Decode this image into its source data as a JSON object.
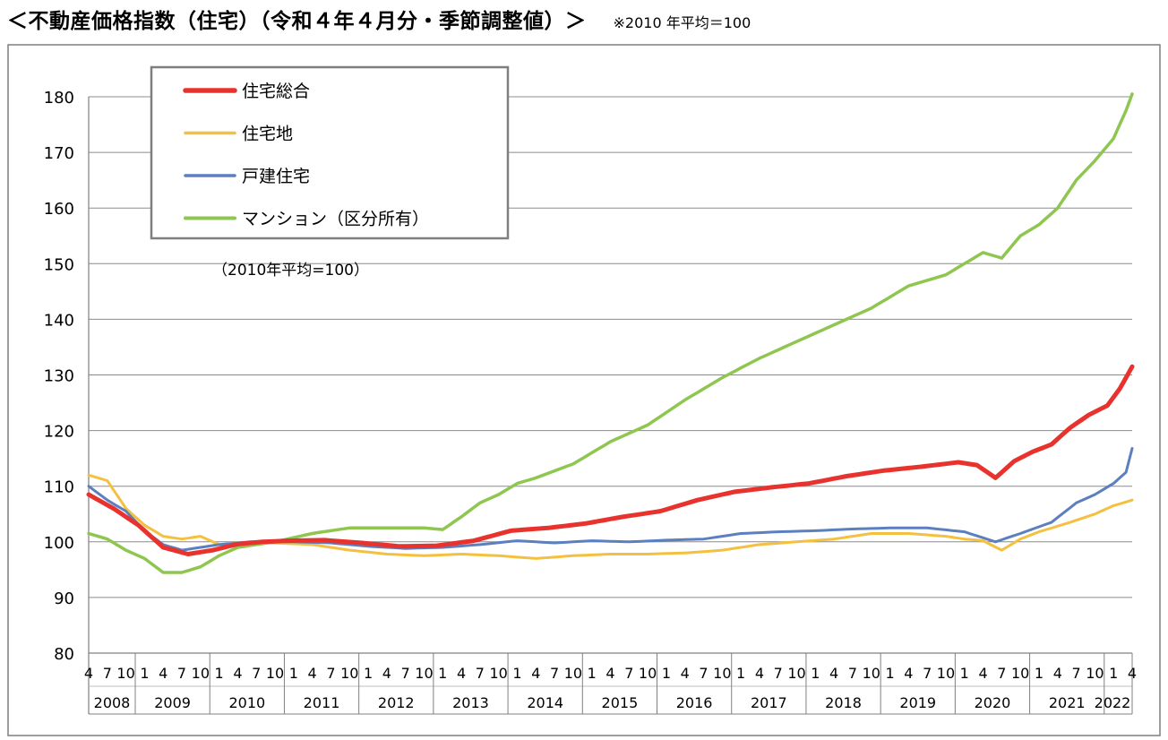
{
  "page": {
    "title": "＜不動産価格指数（住宅）（令和４年４月分・季節調整値）＞",
    "note": "※2010 年平均＝100"
  },
  "chart_data": {
    "type": "line",
    "title": "＜不動産価格指数（住宅）（令和４年４月分・季節調整値）＞",
    "subtitle": "※2010 年平均＝100",
    "annotation": "（2010年平均=100）",
    "xlabel": "",
    "ylabel": "",
    "ylim": [
      80,
      180
    ],
    "yticks": [
      80,
      90,
      100,
      110,
      120,
      130,
      140,
      150,
      160,
      170,
      180
    ],
    "grid": true,
    "legend_position": "top-left",
    "x_start": "2008-04",
    "x_end": "2022-04",
    "month_tick_labels": [
      "1",
      "4",
      "7",
      "10"
    ],
    "year_labels": [
      "2008",
      "2009",
      "2010",
      "2011",
      "2012",
      "2013",
      "2014",
      "2015",
      "2016",
      "2017",
      "2018",
      "2019",
      "2020",
      "2021",
      "2022"
    ],
    "series": [
      {
        "name": "住宅総合",
        "color": "#e8322d",
        "width": 5,
        "keypoints": [
          [
            "2008-04",
            108.5
          ],
          [
            "2008-08",
            106
          ],
          [
            "2008-12",
            103
          ],
          [
            "2009-04",
            99
          ],
          [
            "2009-08",
            97.8
          ],
          [
            "2009-12",
            98.5
          ],
          [
            "2010-04",
            99.6
          ],
          [
            "2010-08",
            100
          ],
          [
            "2010-12",
            100.2
          ],
          [
            "2011-06",
            100.3
          ],
          [
            "2011-12",
            99.8
          ],
          [
            "2012-06",
            99.2
          ],
          [
            "2012-12",
            99.3
          ],
          [
            "2013-06",
            100.2
          ],
          [
            "2013-12",
            102
          ],
          [
            "2014-06",
            102.5
          ],
          [
            "2014-12",
            103.3
          ],
          [
            "2015-06",
            104.5
          ],
          [
            "2015-12",
            105.5
          ],
          [
            "2016-06",
            107.5
          ],
          [
            "2016-12",
            109
          ],
          [
            "2017-06",
            109.8
          ],
          [
            "2017-12",
            110.5
          ],
          [
            "2018-06",
            111.8
          ],
          [
            "2018-12",
            112.8
          ],
          [
            "2019-06",
            113.5
          ],
          [
            "2019-12",
            114.3
          ],
          [
            "2020-03",
            113.8
          ],
          [
            "2020-06",
            111.5
          ],
          [
            "2020-09",
            114.5
          ],
          [
            "2020-12",
            116.2
          ],
          [
            "2021-03",
            117.5
          ],
          [
            "2021-06",
            120.5
          ],
          [
            "2021-09",
            122.8
          ],
          [
            "2021-12",
            124.5
          ],
          [
            "2022-02",
            127.5
          ],
          [
            "2022-04",
            131.5
          ]
        ]
      },
      {
        "name": "住宅地",
        "color": "#f4c040",
        "width": 3,
        "keypoints": [
          [
            "2008-04",
            112
          ],
          [
            "2008-07",
            111
          ],
          [
            "2008-10",
            106
          ],
          [
            "2009-01",
            103
          ],
          [
            "2009-04",
            101
          ],
          [
            "2009-07",
            100.5
          ],
          [
            "2009-10",
            101
          ],
          [
            "2010-01",
            99.5
          ],
          [
            "2010-04",
            99.8
          ],
          [
            "2010-10",
            99.8
          ],
          [
            "2011-04",
            99.5
          ],
          [
            "2011-10",
            98.5
          ],
          [
            "2012-04",
            97.8
          ],
          [
            "2012-10",
            97.5
          ],
          [
            "2013-04",
            97.8
          ],
          [
            "2013-10",
            97.5
          ],
          [
            "2014-04",
            97
          ],
          [
            "2014-10",
            97.5
          ],
          [
            "2015-04",
            97.8
          ],
          [
            "2015-10",
            97.8
          ],
          [
            "2016-04",
            98
          ],
          [
            "2016-10",
            98.5
          ],
          [
            "2017-04",
            99.5
          ],
          [
            "2017-10",
            100
          ],
          [
            "2018-04",
            100.5
          ],
          [
            "2018-10",
            101.5
          ],
          [
            "2019-04",
            101.5
          ],
          [
            "2019-10",
            101
          ],
          [
            "2020-01",
            100.5
          ],
          [
            "2020-04",
            100.2
          ],
          [
            "2020-07",
            98.5
          ],
          [
            "2020-10",
            100.5
          ],
          [
            "2021-01",
            101.8
          ],
          [
            "2021-06",
            103.5
          ],
          [
            "2021-10",
            105
          ],
          [
            "2022-01",
            106.5
          ],
          [
            "2022-04",
            107.5
          ]
        ]
      },
      {
        "name": "戸建住宅",
        "color": "#5b7fbf",
        "width": 3,
        "keypoints": [
          [
            "2008-04",
            110
          ],
          [
            "2008-07",
            107.5
          ],
          [
            "2008-10",
            105.5
          ],
          [
            "2009-01",
            102
          ],
          [
            "2009-04",
            99.5
          ],
          [
            "2009-07",
            98.5
          ],
          [
            "2009-10",
            99
          ],
          [
            "2010-01",
            99.5
          ],
          [
            "2010-06",
            100
          ],
          [
            "2011-01",
            100
          ],
          [
            "2011-07",
            99.8
          ],
          [
            "2012-01",
            99.2
          ],
          [
            "2012-07",
            98.8
          ],
          [
            "2013-01",
            99
          ],
          [
            "2013-07",
            99.5
          ],
          [
            "2014-01",
            100.2
          ],
          [
            "2014-07",
            99.8
          ],
          [
            "2015-01",
            100.2
          ],
          [
            "2015-07",
            100
          ],
          [
            "2016-01",
            100.3
          ],
          [
            "2016-07",
            100.5
          ],
          [
            "2017-01",
            101.5
          ],
          [
            "2017-07",
            101.8
          ],
          [
            "2018-01",
            102
          ],
          [
            "2018-07",
            102.3
          ],
          [
            "2019-01",
            102.5
          ],
          [
            "2019-07",
            102.5
          ],
          [
            "2020-01",
            101.8
          ],
          [
            "2020-06",
            100
          ],
          [
            "2020-10",
            101.5
          ],
          [
            "2021-03",
            103.5
          ],
          [
            "2021-07",
            107
          ],
          [
            "2021-10",
            108.5
          ],
          [
            "2022-01",
            110.5
          ],
          [
            "2022-03",
            112.5
          ],
          [
            "2022-04",
            116.8
          ]
        ]
      },
      {
        "name": "マンション（区分所有）",
        "color": "#8fc650",
        "width": 3.5,
        "keypoints": [
          [
            "2008-04",
            101.5
          ],
          [
            "2008-07",
            100.5
          ],
          [
            "2008-10",
            98.5
          ],
          [
            "2009-01",
            97
          ],
          [
            "2009-04",
            94.5
          ],
          [
            "2009-07",
            94.5
          ],
          [
            "2009-10",
            95.5
          ],
          [
            "2010-01",
            97.5
          ],
          [
            "2010-04",
            99
          ],
          [
            "2010-10",
            100
          ],
          [
            "2011-04",
            101.5
          ],
          [
            "2011-10",
            102.5
          ],
          [
            "2012-04",
            102.5
          ],
          [
            "2012-10",
            102.5
          ],
          [
            "2013-01",
            102.2
          ],
          [
            "2013-04",
            104.5
          ],
          [
            "2013-07",
            107
          ],
          [
            "2013-10",
            108.5
          ],
          [
            "2014-01",
            110.5
          ],
          [
            "2014-04",
            111.5
          ],
          [
            "2014-10",
            114
          ],
          [
            "2015-04",
            118
          ],
          [
            "2015-10",
            121
          ],
          [
            "2016-04",
            125.5
          ],
          [
            "2016-10",
            129.5
          ],
          [
            "2017-04",
            133
          ],
          [
            "2017-10",
            136
          ],
          [
            "2018-04",
            139
          ],
          [
            "2018-10",
            142
          ],
          [
            "2019-04",
            146
          ],
          [
            "2019-10",
            148
          ],
          [
            "2020-04",
            152
          ],
          [
            "2020-07",
            151
          ],
          [
            "2020-10",
            155
          ],
          [
            "2021-01",
            157
          ],
          [
            "2021-04",
            160
          ],
          [
            "2021-07",
            165
          ],
          [
            "2021-10",
            168.5
          ],
          [
            "2022-01",
            172.5
          ],
          [
            "2022-03",
            177.5
          ],
          [
            "2022-04",
            180.5
          ]
        ]
      }
    ]
  }
}
